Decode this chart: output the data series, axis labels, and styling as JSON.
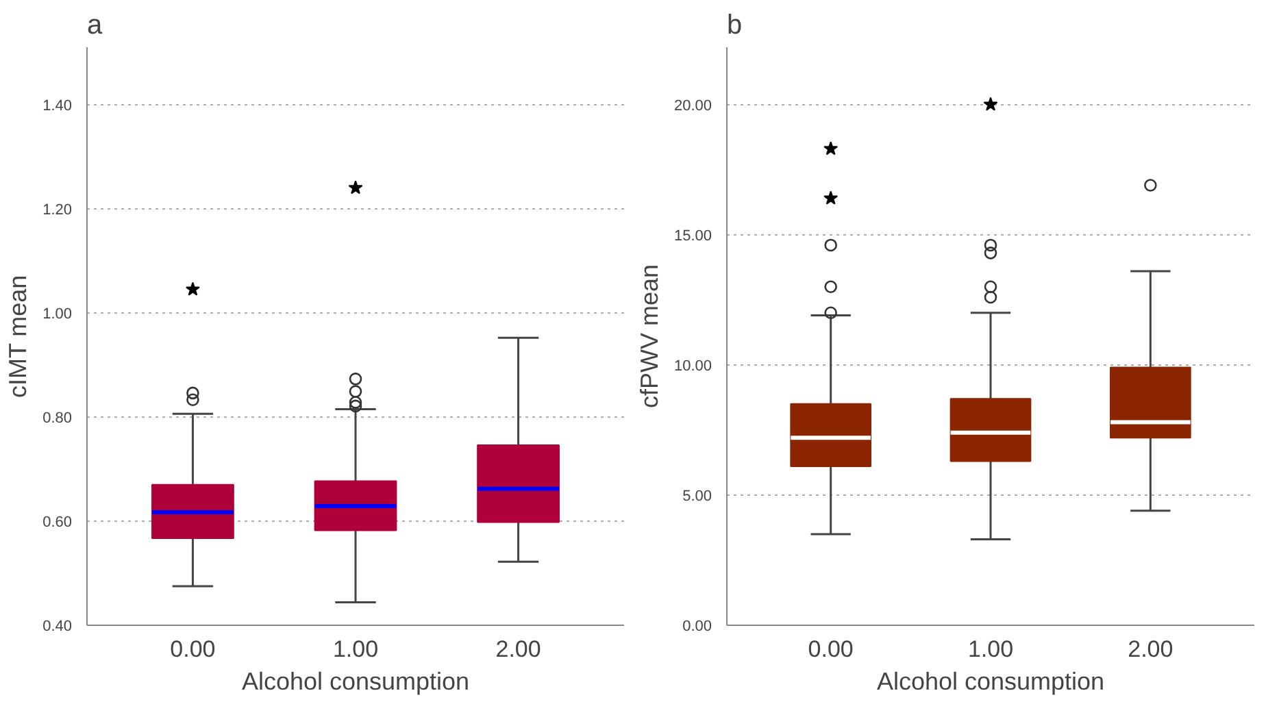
{
  "chart_data": [
    {
      "type": "box",
      "title": "a",
      "xlabel": "Alcohol consumption",
      "ylabel": "cIMT mean",
      "categories": [
        "0.00",
        "1.00",
        "2.00"
      ],
      "ylim": [
        0.4,
        1.51
      ],
      "yticks": [
        {
          "value": 0.4,
          "label": "0.40"
        },
        {
          "value": 0.6,
          "label": "0.60"
        },
        {
          "value": 0.8,
          "label": "0.80"
        },
        {
          "value": 1.0,
          "label": "1.00"
        },
        {
          "value": 1.2,
          "label": "1.20"
        },
        {
          "value": 1.4,
          "label": "1.40"
        }
      ],
      "grid": "y",
      "series": [
        {
          "type": "box",
          "color": "#b0003a",
          "boxes": [
            {
              "low": 0.475,
              "q1": 0.567,
              "median": 0.617,
              "q3": 0.67,
              "high": 0.806,
              "outliers": [
                0.833,
                0.846
              ]
            },
            {
              "low": 0.444,
              "q1": 0.582,
              "median": 0.629,
              "q3": 0.677,
              "high": 0.815,
              "outliers": [
                0.821,
                0.828,
                0.849,
                0.873
              ]
            },
            {
              "low": 0.522,
              "q1": 0.598,
              "median": 0.662,
              "q3": 0.746,
              "high": 0.952
            }
          ]
        },
        {
          "type": "scatter",
          "marker": "star",
          "color": "#000000",
          "x": [
            "0.00",
            "1.00"
          ],
          "values": [
            1.045,
            1.24
          ]
        }
      ]
    },
    {
      "type": "box",
      "title": "b",
      "xlabel": "Alcohol consumption",
      "ylabel": "cfPWV mean",
      "categories": [
        "0.00",
        "1.00",
        "2.00"
      ],
      "ylim": [
        0,
        22.2
      ],
      "yticks": [
        {
          "value": 0,
          "label": "0.00"
        },
        {
          "value": 5,
          "label": "5.00"
        },
        {
          "value": 10,
          "label": "10.00"
        },
        {
          "value": 15,
          "label": "15.00"
        },
        {
          "value": 20,
          "label": "20.00"
        }
      ],
      "grid": "y",
      "series": [
        {
          "type": "box",
          "color": "#8b2500",
          "boxes": [
            {
              "low": 3.5,
              "q1": 6.1,
              "median": 7.2,
              "q3": 8.5,
              "high": 11.9,
              "outliers": [
                12.0,
                13.0,
                14.6
              ]
            },
            {
              "low": 3.3,
              "q1": 6.3,
              "median": 7.4,
              "q3": 8.7,
              "high": 12.0,
              "outliers": [
                12.6,
                13.0,
                14.3,
                14.6
              ]
            },
            {
              "low": 4.4,
              "q1": 7.2,
              "median": 7.8,
              "q3": 9.9,
              "high": 13.6,
              "outliers": [
                16.9
              ]
            }
          ]
        },
        {
          "type": "scatter",
          "marker": "star",
          "color": "#000000",
          "x": [
            "0.00",
            "0.00",
            "1.00"
          ],
          "values": [
            16.4,
            18.3,
            20.0
          ]
        }
      ]
    }
  ]
}
